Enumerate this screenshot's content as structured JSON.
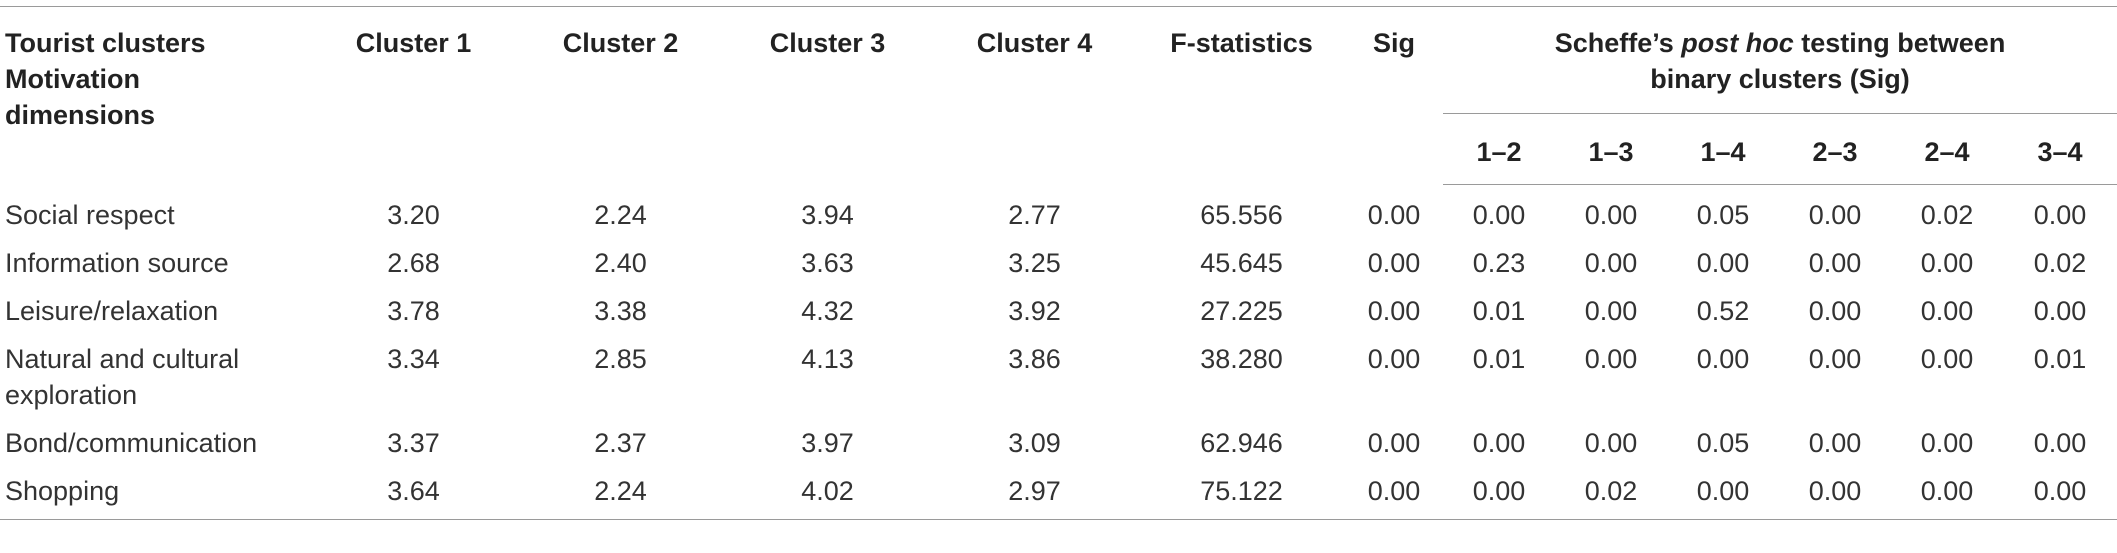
{
  "header": {
    "row_label": [
      "Tourist clusters",
      "Motivation",
      "dimensions"
    ],
    "cluster_labels": [
      "Cluster 1",
      "Cluster 2",
      "Cluster 3",
      "Cluster 4"
    ],
    "f_label": "F-statistics",
    "sig_label": "Sig",
    "scheffe_prefix": "Scheffe’s ",
    "scheffe_italic": "post hoc",
    "scheffe_suffix": " testing between",
    "scheffe_line2": "binary clusters (Sig)",
    "pairs": [
      "1–2",
      "1–3",
      "1–4",
      "2–3",
      "2–4",
      "3–4"
    ]
  },
  "rows": [
    {
      "dimension": "Social respect",
      "dimension_line2": "",
      "clusters": [
        "3.20",
        "2.24",
        "3.94",
        "2.77"
      ],
      "f": "65.556",
      "sig": "0.00",
      "pairs": [
        "0.00",
        "0.00",
        "0.05",
        "0.00",
        "0.02",
        "0.00"
      ]
    },
    {
      "dimension": "Information source",
      "dimension_line2": "",
      "clusters": [
        "2.68",
        "2.40",
        "3.63",
        "3.25"
      ],
      "f": "45.645",
      "sig": "0.00",
      "pairs": [
        "0.23",
        "0.00",
        "0.00",
        "0.00",
        "0.00",
        "0.02"
      ]
    },
    {
      "dimension": "Leisure/relaxation",
      "dimension_line2": "",
      "clusters": [
        "3.78",
        "3.38",
        "4.32",
        "3.92"
      ],
      "f": "27.225",
      "sig": "0.00",
      "pairs": [
        "0.01",
        "0.00",
        "0.52",
        "0.00",
        "0.00",
        "0.00"
      ]
    },
    {
      "dimension": "Natural and cultural",
      "dimension_line2": "exploration",
      "clusters": [
        "3.34",
        "2.85",
        "4.13",
        "3.86"
      ],
      "f": "38.280",
      "sig": "0.00",
      "pairs": [
        "0.01",
        "0.00",
        "0.00",
        "0.00",
        "0.00",
        "0.01"
      ]
    },
    {
      "dimension": "Bond/communication",
      "dimension_line2": "",
      "clusters": [
        "3.37",
        "2.37",
        "3.97",
        "3.09"
      ],
      "f": "62.946",
      "sig": "0.00",
      "pairs": [
        "0.00",
        "0.00",
        "0.05",
        "0.00",
        "0.00",
        "0.00"
      ]
    },
    {
      "dimension": "Shopping",
      "dimension_line2": "",
      "clusters": [
        "3.64",
        "2.24",
        "4.02",
        "2.97"
      ],
      "f": "75.122",
      "sig": "0.00",
      "pairs": [
        "0.00",
        "0.02",
        "0.00",
        "0.00",
        "0.00",
        "0.00"
      ]
    }
  ]
}
